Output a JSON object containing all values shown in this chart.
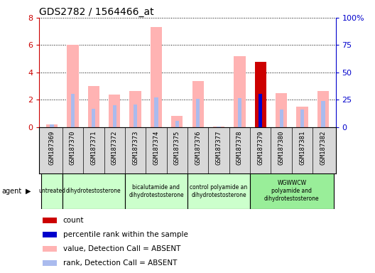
{
  "title": "GDS2782 / 1564466_at",
  "samples": [
    "GSM187369",
    "GSM187370",
    "GSM187371",
    "GSM187372",
    "GSM187373",
    "GSM187374",
    "GSM187375",
    "GSM187376",
    "GSM187377",
    "GSM187378",
    "GSM187379",
    "GSM187380",
    "GSM187381",
    "GSM187382"
  ],
  "value_absent": [
    0.2,
    6.0,
    3.0,
    2.35,
    2.65,
    7.3,
    0.8,
    3.35,
    0.05,
    5.2,
    0.0,
    2.5,
    1.5,
    2.65
  ],
  "rank_absent": [
    0.2,
    2.4,
    1.35,
    1.6,
    1.65,
    2.15,
    0.45,
    2.05,
    0.05,
    2.1,
    0.0,
    1.3,
    1.3,
    1.9
  ],
  "count_present": [
    0.0,
    0.0,
    0.0,
    0.0,
    0.0,
    0.0,
    0.0,
    0.0,
    0.0,
    0.0,
    4.75,
    0.0,
    0.0,
    0.0
  ],
  "rank_present": [
    0.0,
    0.0,
    0.0,
    0.0,
    0.0,
    0.0,
    0.0,
    0.0,
    0.0,
    0.0,
    2.4,
    0.0,
    0.0,
    0.0
  ],
  "groups": [
    {
      "label": "untreated",
      "samples": [
        0
      ],
      "color": "#ccffcc"
    },
    {
      "label": "dihydrotestosterone",
      "samples": [
        1,
        2,
        3
      ],
      "color": "#ccffcc"
    },
    {
      "label": "bicalutamide and\ndihydrotestosterone",
      "samples": [
        4,
        5,
        6
      ],
      "color": "#ccffcc"
    },
    {
      "label": "control polyamide an\ndihydrotestosterone",
      "samples": [
        7,
        8,
        9
      ],
      "color": "#ccffcc"
    },
    {
      "label": "WGWWCW\npolyamide and\ndihydrotestosterone",
      "samples": [
        10,
        11,
        12,
        13
      ],
      "color": "#99ee99"
    }
  ],
  "ylim_left": [
    0,
    8
  ],
  "ylim_right": [
    0,
    100
  ],
  "yticks_left": [
    0,
    2,
    4,
    6,
    8
  ],
  "ytick_labels_right": [
    "0",
    "25",
    "50",
    "75",
    "100%"
  ],
  "color_value_absent": "#ffb3b3",
  "color_rank_absent": "#aabbee",
  "color_count_present": "#cc0000",
  "color_rank_present": "#0000cc",
  "left_axis_color": "#cc0000",
  "right_axis_color": "#0000cc",
  "bar_width": 0.55,
  "rank_bar_width": 0.18,
  "sample_row_bg": "#d8d8d8",
  "legend_items": [
    [
      "#cc0000",
      "count"
    ],
    [
      "#0000cc",
      "percentile rank within the sample"
    ],
    [
      "#ffb3b3",
      "value, Detection Call = ABSENT"
    ],
    [
      "#aabbee",
      "rank, Detection Call = ABSENT"
    ]
  ]
}
